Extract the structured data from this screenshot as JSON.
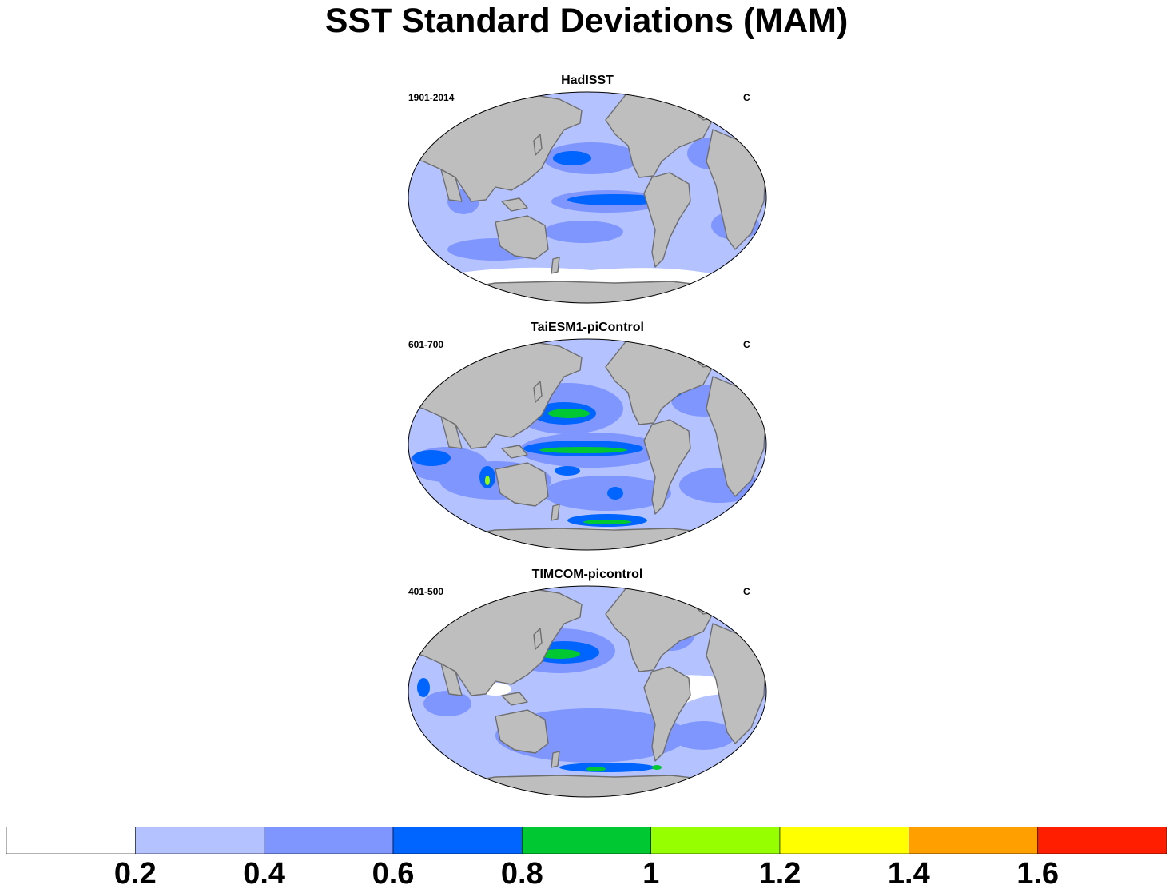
{
  "title": "SST Standard Deviations (MAM)",
  "panels": [
    {
      "name": "HadISST",
      "period": "1901-2014",
      "units": "C"
    },
    {
      "name": "TaiESM1-piControl",
      "period": "601-700",
      "units": "C"
    },
    {
      "name": "TIMCOM-picontrol",
      "period": "401-500",
      "units": "C"
    }
  ],
  "colorbar": {
    "levels": [
      "0.2",
      "0.4",
      "0.6",
      "0.8",
      "1",
      "1.2",
      "1.4",
      "1.6"
    ],
    "colors": [
      "#ffffff",
      "#b4c3ff",
      "#8096ff",
      "#0064ff",
      "#00c832",
      "#96ff00",
      "#ffff00",
      "#ffa000",
      "#ff1e00"
    ]
  },
  "palette": {
    "land": "#bebebe",
    "coast": "#6e6e6e"
  }
}
